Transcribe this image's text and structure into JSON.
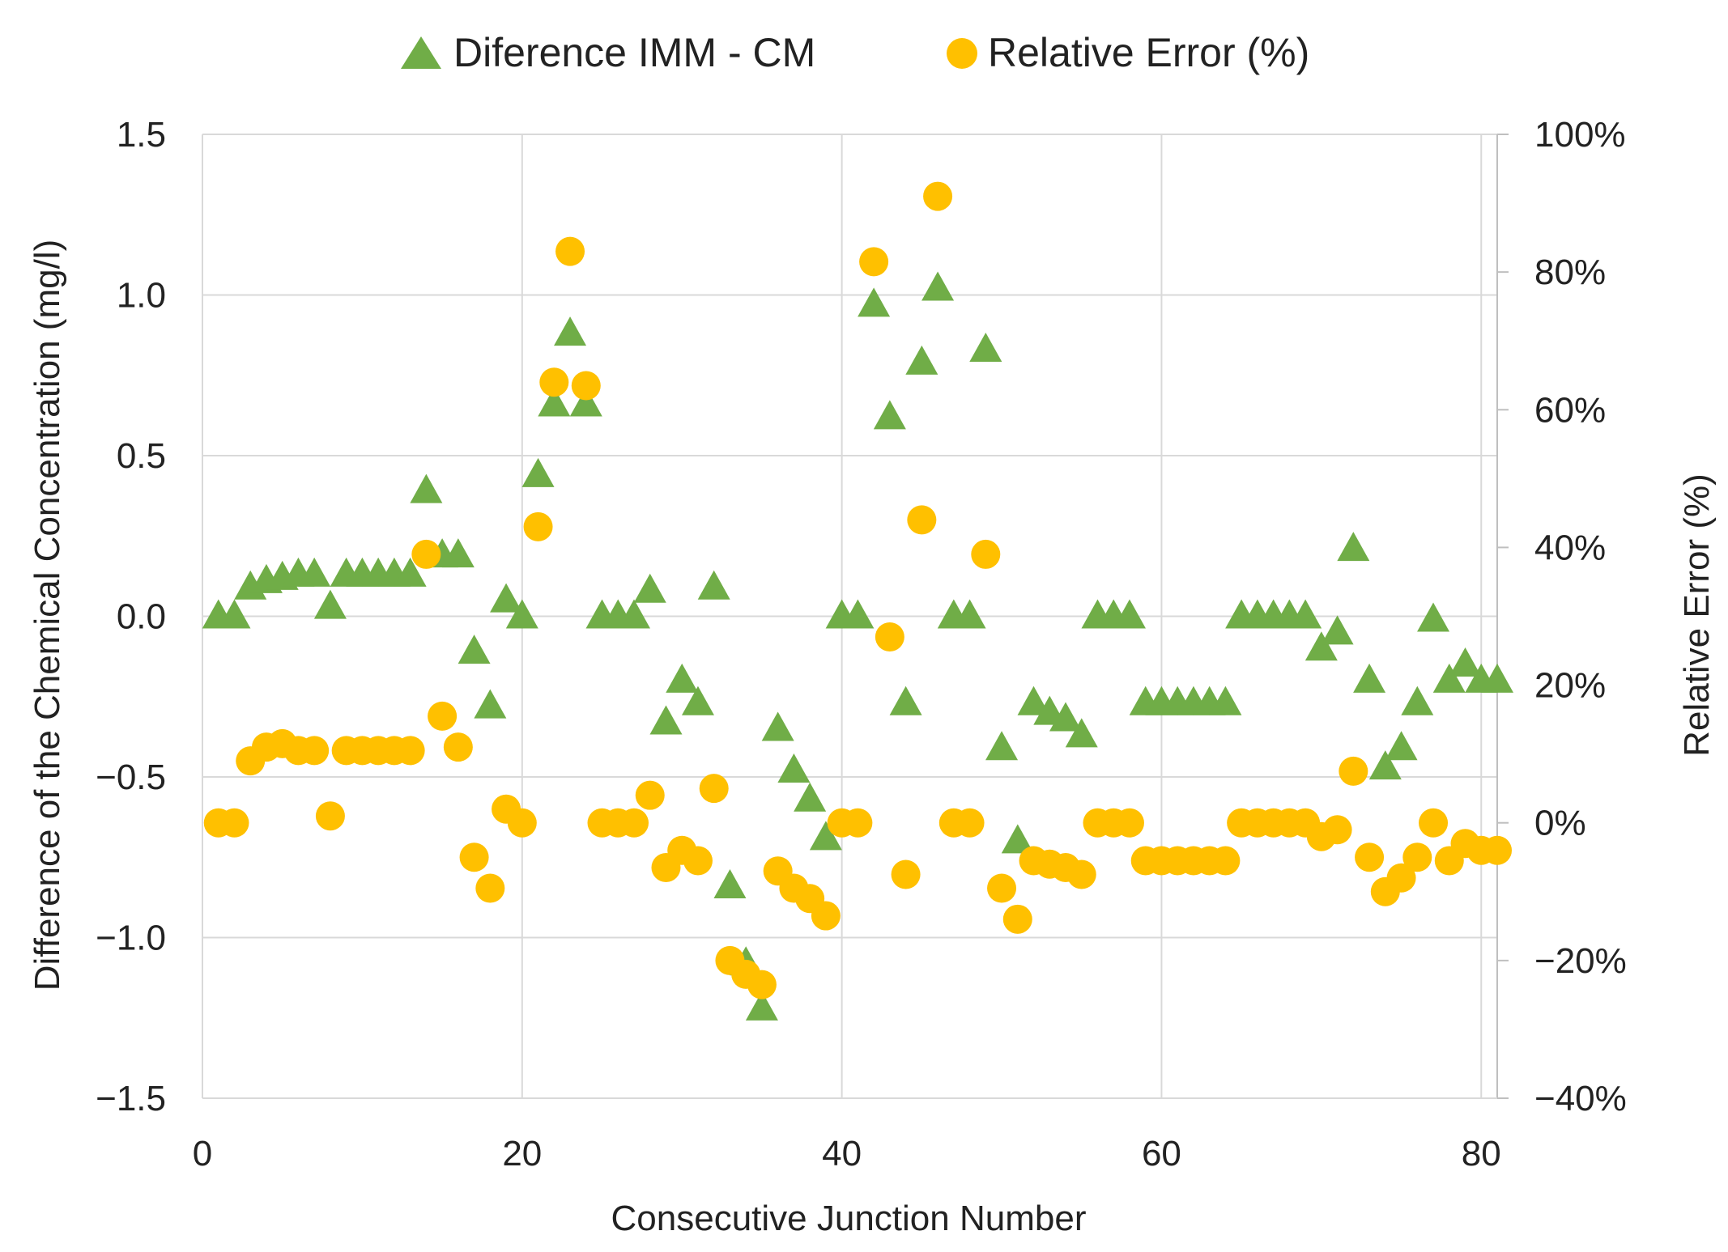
{
  "chart_data": {
    "type": "scatter",
    "title": "",
    "xlabel": "Consecutive Junction Number",
    "ylabel": "Difference of the Chemical Concentration (mg/l)",
    "y2label": "Relative Error (%)",
    "xlim": [
      0,
      81
    ],
    "ylim": [
      -1.5,
      1.5
    ],
    "y2lim": [
      -40,
      100
    ],
    "x_ticks": [
      0,
      20,
      40,
      60,
      80
    ],
    "x_tick_labels": [
      "0",
      "20",
      "40",
      "60",
      "80"
    ],
    "y_ticks": [
      1.5,
      1.0,
      0.5,
      0.0,
      -0.5,
      -1.0,
      -1.5
    ],
    "y_tick_labels": [
      "1.5",
      "1.0",
      "0.5",
      "0.0",
      "−0.5",
      "−1.0",
      "−1.5"
    ],
    "y2_ticks": [
      100,
      80,
      60,
      40,
      20,
      0,
      -20,
      -40
    ],
    "y2_tick_labels": [
      "100%",
      "80%",
      "60%",
      "40%",
      "20%",
      "0%",
      "−20%",
      "−40%"
    ],
    "grid": true,
    "legend_position": "top-center",
    "series": [
      {
        "name": "Diference IMM - CM",
        "marker": "triangle",
        "color": "#70AD47",
        "axis": "left",
        "points": [
          [
            1,
            0.0
          ],
          [
            2,
            0.0
          ],
          [
            3,
            0.09
          ],
          [
            4,
            0.11
          ],
          [
            5,
            0.12
          ],
          [
            6,
            0.13
          ],
          [
            7,
            0.13
          ],
          [
            8,
            0.03
          ],
          [
            9,
            0.13
          ],
          [
            10,
            0.13
          ],
          [
            11,
            0.13
          ],
          [
            12,
            0.13
          ],
          [
            13,
            0.13
          ],
          [
            14,
            0.39
          ],
          [
            15,
            0.19
          ],
          [
            16,
            0.19
          ],
          [
            17,
            -0.11
          ],
          [
            18,
            -0.28
          ],
          [
            19,
            0.05
          ],
          [
            20,
            0.0
          ],
          [
            21,
            0.44
          ],
          [
            22,
            0.66
          ],
          [
            23,
            0.88
          ],
          [
            24,
            0.66
          ],
          [
            25,
            0.0
          ],
          [
            26,
            0.0
          ],
          [
            27,
            0.0
          ],
          [
            28,
            0.08
          ],
          [
            29,
            -0.33
          ],
          [
            30,
            -0.2
          ],
          [
            31,
            -0.27
          ],
          [
            32,
            0.09
          ],
          [
            33,
            -0.84
          ],
          [
            34,
            -1.08
          ],
          [
            35,
            -1.22
          ],
          [
            36,
            -0.35
          ],
          [
            37,
            -0.48
          ],
          [
            38,
            -0.57
          ],
          [
            39,
            -0.69
          ],
          [
            40,
            0.0
          ],
          [
            41,
            0.0
          ],
          [
            42,
            0.97
          ],
          [
            43,
            0.62
          ],
          [
            44,
            -0.27
          ],
          [
            45,
            0.79
          ],
          [
            46,
            1.02
          ],
          [
            47,
            0.0
          ],
          [
            48,
            0.0
          ],
          [
            49,
            0.83
          ],
          [
            50,
            -0.41
          ],
          [
            51,
            -0.7
          ],
          [
            52,
            -0.27
          ],
          [
            53,
            -0.3
          ],
          [
            54,
            -0.32
          ],
          [
            55,
            -0.37
          ],
          [
            56,
            0.0
          ],
          [
            57,
            0.0
          ],
          [
            58,
            0.0
          ],
          [
            59,
            -0.27
          ],
          [
            60,
            -0.27
          ],
          [
            61,
            -0.27
          ],
          [
            62,
            -0.27
          ],
          [
            63,
            -0.27
          ],
          [
            64,
            -0.27
          ],
          [
            65,
            0.0
          ],
          [
            66,
            0.0
          ],
          [
            67,
            0.0
          ],
          [
            68,
            0.0
          ],
          [
            69,
            0.0
          ],
          [
            70,
            -0.1
          ],
          [
            71,
            -0.05
          ],
          [
            72,
            0.21
          ],
          [
            73,
            -0.2
          ],
          [
            74,
            -0.47
          ],
          [
            75,
            -0.41
          ],
          [
            76,
            -0.27
          ],
          [
            77,
            -0.01
          ],
          [
            78,
            -0.2
          ],
          [
            79,
            -0.15
          ],
          [
            80,
            -0.2
          ],
          [
            81,
            -0.2
          ]
        ]
      },
      {
        "name": "Relative Error (%)",
        "marker": "circle",
        "color": "#FFC000",
        "axis": "right",
        "points": [
          [
            1,
            0
          ],
          [
            2,
            0
          ],
          [
            3,
            9
          ],
          [
            4,
            11
          ],
          [
            5,
            11.5
          ],
          [
            6,
            10.5
          ],
          [
            7,
            10.5
          ],
          [
            8,
            1
          ],
          [
            9,
            10.5
          ],
          [
            10,
            10.5
          ],
          [
            11,
            10.5
          ],
          [
            12,
            10.5
          ],
          [
            13,
            10.5
          ],
          [
            14,
            39
          ],
          [
            15,
            15.5
          ],
          [
            16,
            11
          ],
          [
            17,
            -5
          ],
          [
            18,
            -9.5
          ],
          [
            19,
            2
          ],
          [
            20,
            0
          ],
          [
            21,
            43
          ],
          [
            22,
            64
          ],
          [
            23,
            83
          ],
          [
            24,
            63.5
          ],
          [
            25,
            0
          ],
          [
            26,
            0
          ],
          [
            27,
            0
          ],
          [
            28,
            4
          ],
          [
            29,
            -6.5
          ],
          [
            30,
            -4
          ],
          [
            31,
            -5.5
          ],
          [
            32,
            5
          ],
          [
            33,
            -20
          ],
          [
            34,
            -22
          ],
          [
            35,
            -23.5
          ],
          [
            36,
            -7
          ],
          [
            37,
            -9.5
          ],
          [
            38,
            -11
          ],
          [
            39,
            -13.5
          ],
          [
            40,
            0
          ],
          [
            41,
            0
          ],
          [
            42,
            81.5
          ],
          [
            43,
            27
          ],
          [
            44,
            -7.5
          ],
          [
            45,
            44
          ],
          [
            46,
            91
          ],
          [
            47,
            0
          ],
          [
            48,
            0
          ],
          [
            49,
            39
          ],
          [
            50,
            -9.5
          ],
          [
            51,
            -14
          ],
          [
            52,
            -5.5
          ],
          [
            53,
            -6
          ],
          [
            54,
            -6.5
          ],
          [
            55,
            -7.5
          ],
          [
            56,
            0
          ],
          [
            57,
            0
          ],
          [
            58,
            0
          ],
          [
            59,
            -5.5
          ],
          [
            60,
            -5.5
          ],
          [
            61,
            -5.5
          ],
          [
            62,
            -5.5
          ],
          [
            63,
            -5.5
          ],
          [
            64,
            -5.5
          ],
          [
            65,
            0
          ],
          [
            66,
            0
          ],
          [
            67,
            0
          ],
          [
            68,
            0
          ],
          [
            69,
            0
          ],
          [
            70,
            -2
          ],
          [
            71,
            -1
          ],
          [
            72,
            7.5
          ],
          [
            73,
            -5
          ],
          [
            74,
            -10
          ],
          [
            75,
            -8
          ],
          [
            76,
            -5
          ],
          [
            77,
            0
          ],
          [
            78,
            -5.5
          ],
          [
            79,
            -3
          ],
          [
            80,
            -4
          ],
          [
            81,
            -4
          ]
        ]
      }
    ]
  }
}
